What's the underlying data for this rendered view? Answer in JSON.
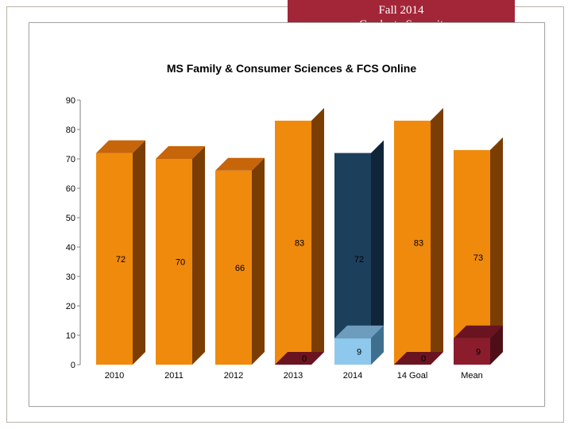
{
  "banner": {
    "line1": "Fall 2014",
    "line2": "Graduate Summit",
    "background": "#a32638"
  },
  "chart_data": {
    "type": "bar",
    "stacked": true,
    "title": "MS Family & Consumer Sciences & FCS Online",
    "xlabel": "",
    "ylabel": "",
    "ylim": [
      0,
      90
    ],
    "yticks": [
      0,
      10,
      20,
      30,
      40,
      50,
      60,
      70,
      80,
      90
    ],
    "grid": false,
    "legend": "none",
    "categories": [
      "2010",
      "2011",
      "2012",
      "2013",
      "2014",
      "14 Goal",
      "Mean"
    ],
    "bars": [
      {
        "category": "2010",
        "segments": [
          {
            "value": 72,
            "label": "72",
            "color": "orange"
          }
        ]
      },
      {
        "category": "2011",
        "segments": [
          {
            "value": 70,
            "label": "70",
            "color": "orange"
          }
        ]
      },
      {
        "category": "2012",
        "segments": [
          {
            "value": 66,
            "label": "66",
            "color": "orange"
          }
        ]
      },
      {
        "category": "2013",
        "segments": [
          {
            "value": 83,
            "label": "83",
            "color": "orange"
          },
          {
            "value": 0,
            "label": "0",
            "color": "maroon"
          }
        ]
      },
      {
        "category": "2014",
        "segments": [
          {
            "value": 72,
            "label": "72",
            "color": "navy"
          },
          {
            "value": 9,
            "label": "9",
            "color": "lightblue"
          }
        ]
      },
      {
        "category": "14 Goal",
        "segments": [
          {
            "value": 83,
            "label": "83",
            "color": "orange"
          },
          {
            "value": 0,
            "label": "0",
            "color": "maroon"
          }
        ]
      },
      {
        "category": "Mean",
        "segments": [
          {
            "value": 73,
            "label": "73",
            "color": "orange"
          },
          {
            "value": 9,
            "label": "9",
            "color": "maroon"
          }
        ]
      }
    ],
    "colors": {
      "orange": {
        "front": "#f08a0c",
        "side": "#7a3e05",
        "top": "#c7650a"
      },
      "maroon": {
        "front": "#8b1c2c",
        "side": "#4e0e18",
        "top": "#6a1421"
      },
      "navy": {
        "front": "#1c3f5c",
        "side": "#0f2538",
        "top": "#163149"
      },
      "lightblue": {
        "front": "#8ec8ec",
        "side": "#3f6f8e",
        "top": "#6e9cbd"
      }
    }
  }
}
